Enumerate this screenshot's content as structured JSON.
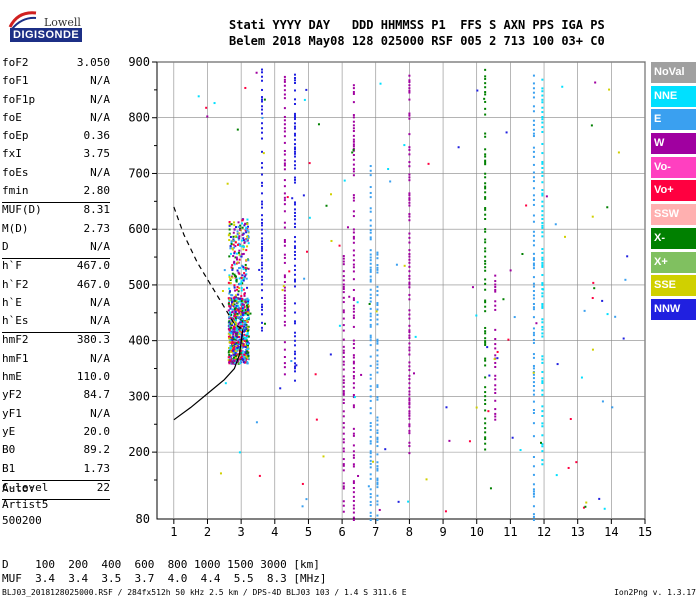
{
  "logo": {
    "line1": "Lowell",
    "line2": "DIGISONDE"
  },
  "header": {
    "row1": "Stati YYYY DAY   DDD HHMMSS P1  FFS S AXN PPS IGA PS",
    "row2": "Belem 2018 May08 128 025000 RSF 005 2 713 100 03+ C0"
  },
  "params": [
    {
      "label": "foF2",
      "value": "3.050"
    },
    {
      "label": "foF1",
      "value": "N/A"
    },
    {
      "label": "foF1p",
      "value": "N/A"
    },
    {
      "label": "foE",
      "value": "N/A"
    },
    {
      "label": "foEp",
      "value": "0.36"
    },
    {
      "label": "fxI",
      "value": "3.75"
    },
    {
      "label": "foEs",
      "value": "N/A"
    },
    {
      "label": "fmin",
      "value": "2.80"
    },
    {
      "label": "MUF(D)",
      "value": "8.31"
    },
    {
      "label": "M(D)",
      "value": "2.73"
    },
    {
      "label": "D",
      "value": "N/A"
    },
    {
      "label": "h`F",
      "value": "467.0"
    },
    {
      "label": "h`F2",
      "value": "467.0"
    },
    {
      "label": "h`E",
      "value": "N/A"
    },
    {
      "label": "h`Es",
      "value": "N/A"
    },
    {
      "label": "hmF2",
      "value": "380.3"
    },
    {
      "label": "hmF1",
      "value": "N/A"
    },
    {
      "label": "hmE",
      "value": "110.0"
    },
    {
      "label": "yF2",
      "value": "84.7"
    },
    {
      "label": "yF1",
      "value": "N/A"
    },
    {
      "label": "yE",
      "value": "20.0"
    },
    {
      "label": "B0",
      "value": "89.2"
    },
    {
      "label": "B1",
      "value": "1.73"
    },
    {
      "label": "C-level",
      "value": "22"
    }
  ],
  "auto": {
    "label": "Auto:",
    "artist": "Artist5",
    "version": "500200"
  },
  "legend": [
    {
      "label": "NoVal",
      "color": "#a0a0a0"
    },
    {
      "label": "NNE",
      "color": "#00e0ff"
    },
    {
      "label": "E",
      "color": "#3aa0f0"
    },
    {
      "label": "W",
      "color": "#a000a0"
    },
    {
      "label": "Vo-",
      "color": "#ff40c0"
    },
    {
      "label": "Vo+",
      "color": "#ff0040"
    },
    {
      "label": "SSW",
      "color": "#ffb0b0"
    },
    {
      "label": "X-",
      "color": "#008000"
    },
    {
      "label": "X+",
      "color": "#80c060"
    },
    {
      "label": "SSE",
      "color": "#d0d000"
    },
    {
      "label": "NNW",
      "color": "#2020e0"
    }
  ],
  "mufTable": {
    "row1": "D    100  200  400  600  800 1000 1500 3000 [km]",
    "row2": "MUF  3.4  3.4  3.5  3.7  4.0  4.4  5.5  8.3 [MHz]"
  },
  "footer": {
    "left": "BLJ03_2018128025000.RSF / 284fx512h 50 kHz 2.5 km / DPS-4D BLJ03 103 / 1.4 S 311.6 E",
    "right": "Ion2Png v. 1.3.17"
  },
  "chart_data": {
    "type": "scatter",
    "title": "",
    "xlabel": "",
    "ylabel": "",
    "xlim": [
      1,
      15
    ],
    "ylim": [
      80,
      900
    ],
    "x_ticks": [
      1,
      2,
      3,
      4,
      5,
      6,
      7,
      8,
      9,
      10,
      11,
      12,
      13,
      14,
      15
    ],
    "y_ticks": [
      200,
      300,
      400,
      500,
      600,
      700,
      800,
      900
    ],
    "y_tick_labels": [
      "200",
      "300",
      "400",
      "500",
      "600",
      "700",
      "800",
      "900"
    ],
    "y_bottom_label": "80",
    "grid": true,
    "profile_curve": {
      "solid": [
        [
          1.0,
          258
        ],
        [
          1.5,
          280
        ],
        [
          2.0,
          305
        ],
        [
          2.5,
          330
        ],
        [
          2.8,
          350
        ],
        [
          2.95,
          375
        ],
        [
          3.05,
          420
        ]
      ],
      "dashed": [
        [
          1.0,
          640
        ],
        [
          1.3,
          590
        ],
        [
          1.7,
          540
        ],
        [
          2.1,
          500
        ],
        [
          2.5,
          460
        ],
        [
          2.8,
          430
        ],
        [
          3.05,
          420
        ]
      ]
    },
    "vertical_traces": [
      {
        "x": 3.62,
        "y0": 420,
        "y1": 890,
        "color": "#2020e0"
      },
      {
        "x": 4.3,
        "y0": 330,
        "y1": 880,
        "color": "#a000a0"
      },
      {
        "x": 4.6,
        "y0": 330,
        "y1": 880,
        "color": "#2020e0"
      },
      {
        "x": 6.05,
        "y0": 90,
        "y1": 560,
        "color": "#a000a0"
      },
      {
        "x": 6.35,
        "y0": 80,
        "y1": 880,
        "color": "#a000a0"
      },
      {
        "x": 6.85,
        "y0": 80,
        "y1": 720,
        "color": "#3aa0f0"
      },
      {
        "x": 7.05,
        "y0": 80,
        "y1": 560,
        "color": "#3aa0f0"
      },
      {
        "x": 8.0,
        "y0": 200,
        "y1": 880,
        "color": "#a000a0"
      },
      {
        "x": 10.25,
        "y0": 190,
        "y1": 890,
        "color": "#008000"
      },
      {
        "x": 10.55,
        "y0": 260,
        "y1": 520,
        "color": "#a000a0"
      },
      {
        "x": 11.7,
        "y0": 80,
        "y1": 880,
        "color": "#3aa0f0"
      },
      {
        "x": 11.95,
        "y0": 180,
        "y1": 880,
        "color": "#00e0ff"
      }
    ],
    "cluster": {
      "x_range": [
        2.0,
        3.2
      ],
      "y_range": [
        350,
        620
      ],
      "note_colors": [
        "#ff0040",
        "#00e0ff",
        "#3aa0f0",
        "#a000a0",
        "#008000",
        "#d0d000",
        "#2020e0"
      ]
    }
  }
}
